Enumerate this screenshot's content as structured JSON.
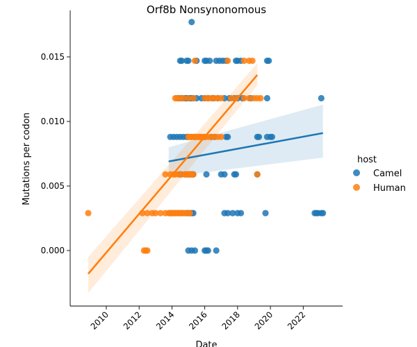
{
  "chart_data": {
    "type": "scatter",
    "title": "Orf8b Nonsynonomous",
    "xlabel": "Date",
    "ylabel": "Mutations per codon",
    "xlim": [
      2007.8,
      2024.4
    ],
    "ylim": [
      -0.0043,
      0.0186
    ],
    "x_ticks": [
      2010,
      2012,
      2014,
      2016,
      2018,
      2020,
      2022
    ],
    "y_ticks": [
      0.0,
      0.005,
      0.01,
      0.015
    ],
    "y_tick_labels": [
      "0.000",
      "0.005",
      "0.010",
      "0.015"
    ],
    "legend": {
      "title": "host",
      "placement": "right",
      "entries": [
        "Camel",
        "Human"
      ]
    },
    "grid": false,
    "series": [
      {
        "name": "Camel",
        "color": "#1f77b4",
        "points": [
          [
            2015.2,
            0.0177
          ],
          [
            2014.5,
            0.0147
          ],
          [
            2014.6,
            0.0147
          ],
          [
            2014.9,
            0.0147
          ],
          [
            2015.0,
            0.0147
          ],
          [
            2015.5,
            0.0147
          ],
          [
            2016.0,
            0.0147
          ],
          [
            2016.1,
            0.0147
          ],
          [
            2016.3,
            0.0147
          ],
          [
            2016.7,
            0.0147
          ],
          [
            2016.9,
            0.0147
          ],
          [
            2017.1,
            0.0147
          ],
          [
            2017.3,
            0.0147
          ],
          [
            2017.9,
            0.0147
          ],
          [
            2018.0,
            0.0147
          ],
          [
            2018.2,
            0.0147
          ],
          [
            2019.8,
            0.0147
          ],
          [
            2019.9,
            0.0147
          ],
          [
            2014.4,
            0.0118
          ],
          [
            2014.6,
            0.0118
          ],
          [
            2014.8,
            0.0118
          ],
          [
            2014.9,
            0.0118
          ],
          [
            2015.0,
            0.0118
          ],
          [
            2015.1,
            0.0118
          ],
          [
            2015.2,
            0.0118
          ],
          [
            2015.3,
            0.0118
          ],
          [
            2015.5,
            0.0118
          ],
          [
            2015.8,
            0.0118
          ],
          [
            2016.0,
            0.0118
          ],
          [
            2016.2,
            0.0118
          ],
          [
            2016.5,
            0.0118
          ],
          [
            2016.8,
            0.0118
          ],
          [
            2017.2,
            0.0118
          ],
          [
            2017.5,
            0.0118
          ],
          [
            2017.8,
            0.0118
          ],
          [
            2018.0,
            0.0118
          ],
          [
            2018.3,
            0.0118
          ],
          [
            2018.8,
            0.0118
          ],
          [
            2019.8,
            0.0118
          ],
          [
            2023.1,
            0.0118
          ],
          [
            2013.9,
            0.0088
          ],
          [
            2014.1,
            0.0088
          ],
          [
            2014.3,
            0.0088
          ],
          [
            2014.5,
            0.0088
          ],
          [
            2014.7,
            0.0088
          ],
          [
            2014.9,
            0.0088
          ],
          [
            2015.0,
            0.0088
          ],
          [
            2015.2,
            0.0088
          ],
          [
            2015.4,
            0.0088
          ],
          [
            2015.7,
            0.0088
          ],
          [
            2016.0,
            0.0088
          ],
          [
            2016.4,
            0.0088
          ],
          [
            2016.6,
            0.0088
          ],
          [
            2017.3,
            0.0088
          ],
          [
            2017.4,
            0.0088
          ],
          [
            2019.2,
            0.0088
          ],
          [
            2019.3,
            0.0088
          ],
          [
            2019.8,
            0.0088
          ],
          [
            2020.0,
            0.0088
          ],
          [
            2020.1,
            0.0088
          ],
          [
            2014.5,
            0.0059
          ],
          [
            2014.8,
            0.0059
          ],
          [
            2015.0,
            0.0059
          ],
          [
            2015.1,
            0.0059
          ],
          [
            2015.2,
            0.0059
          ],
          [
            2015.3,
            0.0059
          ],
          [
            2016.1,
            0.0059
          ],
          [
            2017.0,
            0.0059
          ],
          [
            2017.2,
            0.0059
          ],
          [
            2017.8,
            0.0059
          ],
          [
            2017.9,
            0.0059
          ],
          [
            2019.2,
            0.0059
          ],
          [
            2013.9,
            0.0029
          ],
          [
            2014.0,
            0.0029
          ],
          [
            2014.2,
            0.0029
          ],
          [
            2014.4,
            0.0029
          ],
          [
            2014.6,
            0.0029
          ],
          [
            2014.9,
            0.0029
          ],
          [
            2015.0,
            0.0029
          ],
          [
            2015.1,
            0.0029
          ],
          [
            2015.2,
            0.0029
          ],
          [
            2015.3,
            0.0029
          ],
          [
            2017.2,
            0.0029
          ],
          [
            2017.4,
            0.0029
          ],
          [
            2017.7,
            0.0029
          ],
          [
            2018.0,
            0.0029
          ],
          [
            2018.2,
            0.0029
          ],
          [
            2019.7,
            0.0029
          ],
          [
            2022.7,
            0.0029
          ],
          [
            2022.8,
            0.0029
          ],
          [
            2022.9,
            0.0029
          ],
          [
            2023.1,
            0.0029
          ],
          [
            2023.2,
            0.0029
          ],
          [
            2015.0,
            0.0
          ],
          [
            2015.2,
            0.0
          ],
          [
            2015.4,
            0.0
          ],
          [
            2016.0,
            0.0
          ],
          [
            2016.1,
            0.0
          ],
          [
            2016.2,
            0.0
          ],
          [
            2016.7,
            0.0
          ]
        ],
        "trend": {
          "x": [
            2013.8,
            2023.2
          ],
          "y": [
            0.0069,
            0.0091
          ],
          "ci_lower": [
            0.0057,
            0.0072
          ],
          "ci_upper": [
            0.008,
            0.0113
          ]
        }
      },
      {
        "name": "Human",
        "color": "#ff7f0e",
        "points": [
          [
            2015.4,
            0.0147
          ],
          [
            2017.4,
            0.0147
          ],
          [
            2018.4,
            0.0147
          ],
          [
            2018.7,
            0.0147
          ],
          [
            2018.9,
            0.0147
          ],
          [
            2014.2,
            0.0118
          ],
          [
            2014.3,
            0.0118
          ],
          [
            2014.5,
            0.0118
          ],
          [
            2014.7,
            0.0118
          ],
          [
            2015.0,
            0.0118
          ],
          [
            2015.3,
            0.0118
          ],
          [
            2016.0,
            0.0118
          ],
          [
            2016.2,
            0.0118
          ],
          [
            2016.4,
            0.0118
          ],
          [
            2016.6,
            0.0118
          ],
          [
            2016.8,
            0.0118
          ],
          [
            2017.0,
            0.0118
          ],
          [
            2017.6,
            0.0118
          ],
          [
            2017.9,
            0.0118
          ],
          [
            2018.4,
            0.0118
          ],
          [
            2018.7,
            0.0118
          ],
          [
            2019.0,
            0.0118
          ],
          [
            2019.2,
            0.0118
          ],
          [
            2019.4,
            0.0118
          ],
          [
            2015.0,
            0.0088
          ],
          [
            2015.1,
            0.0088
          ],
          [
            2015.2,
            0.0088
          ],
          [
            2015.3,
            0.0088
          ],
          [
            2015.4,
            0.0088
          ],
          [
            2015.5,
            0.0088
          ],
          [
            2015.6,
            0.0088
          ],
          [
            2015.7,
            0.0088
          ],
          [
            2015.8,
            0.0088
          ],
          [
            2015.9,
            0.0088
          ],
          [
            2016.0,
            0.0088
          ],
          [
            2016.2,
            0.0088
          ],
          [
            2016.4,
            0.0088
          ],
          [
            2016.6,
            0.0088
          ],
          [
            2016.8,
            0.0088
          ],
          [
            2017.0,
            0.0088
          ],
          [
            2013.6,
            0.0059
          ],
          [
            2013.9,
            0.0059
          ],
          [
            2014.1,
            0.0059
          ],
          [
            2014.2,
            0.0059
          ],
          [
            2014.4,
            0.0059
          ],
          [
            2014.6,
            0.0059
          ],
          [
            2014.8,
            0.0059
          ],
          [
            2014.9,
            0.0059
          ],
          [
            2015.0,
            0.0059
          ],
          [
            2015.1,
            0.0059
          ],
          [
            2015.2,
            0.0059
          ],
          [
            2015.3,
            0.0059
          ],
          [
            2019.2,
            0.0059
          ],
          [
            2008.9,
            0.0029
          ],
          [
            2012.2,
            0.0029
          ],
          [
            2012.5,
            0.0029
          ],
          [
            2012.8,
            0.0029
          ],
          [
            2013.0,
            0.0029
          ],
          [
            2013.3,
            0.0029
          ],
          [
            2013.6,
            0.0029
          ],
          [
            2013.8,
            0.0029
          ],
          [
            2013.9,
            0.0029
          ],
          [
            2014.0,
            0.0029
          ],
          [
            2014.1,
            0.0029
          ],
          [
            2014.2,
            0.0029
          ],
          [
            2014.3,
            0.0029
          ],
          [
            2014.4,
            0.0029
          ],
          [
            2014.5,
            0.0029
          ],
          [
            2014.7,
            0.0029
          ],
          [
            2014.8,
            0.0029
          ],
          [
            2015.0,
            0.0029
          ],
          [
            2015.1,
            0.0029
          ],
          [
            2012.3,
            0.0
          ],
          [
            2012.4,
            0.0
          ],
          [
            2012.5,
            0.0
          ]
        ],
        "trend": {
          "x": [
            2008.9,
            2019.2
          ],
          "y": [
            -0.0018,
            0.0136
          ],
          "ci_lower": [
            -0.0033,
            0.0128
          ],
          "ci_upper": [
            -0.0005,
            0.0145
          ]
        }
      }
    ]
  }
}
